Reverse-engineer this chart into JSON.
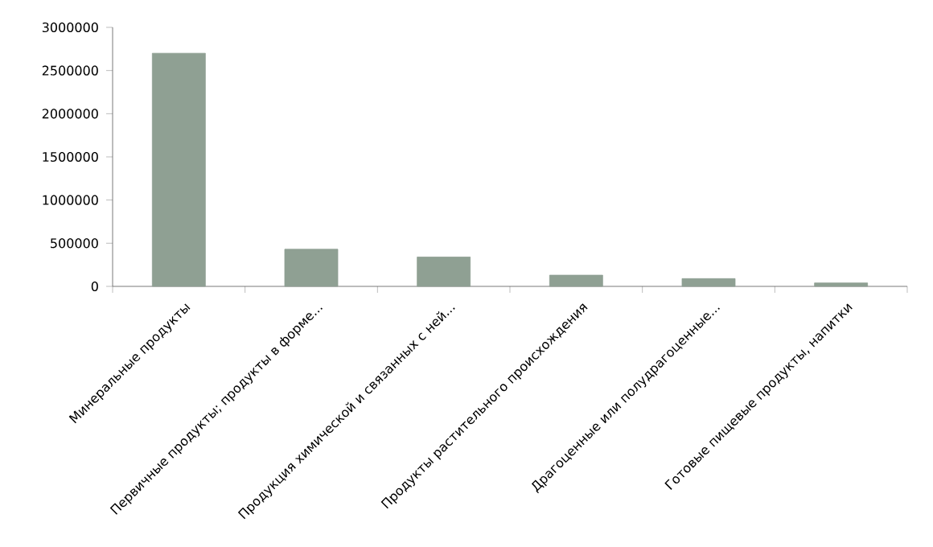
{
  "chart_data": {
    "type": "bar",
    "categories": [
      "Минеральные продукты",
      "Первичные продукты; продукты в форме...",
      "Продукция химической и связанных с ней...",
      "Продукты растительного происхождения",
      "Драгоценные или полудрагоценные...",
      "Готовые пищевые продукты, напитки"
    ],
    "values": [
      2700000,
      430000,
      340000,
      130000,
      90000,
      40000
    ],
    "color": "#8fa093",
    "ylim": [
      0,
      3000000
    ],
    "yticks": [
      0,
      500000,
      1000000,
      1500000,
      2000000,
      2500000,
      3000000
    ],
    "grid": false
  }
}
